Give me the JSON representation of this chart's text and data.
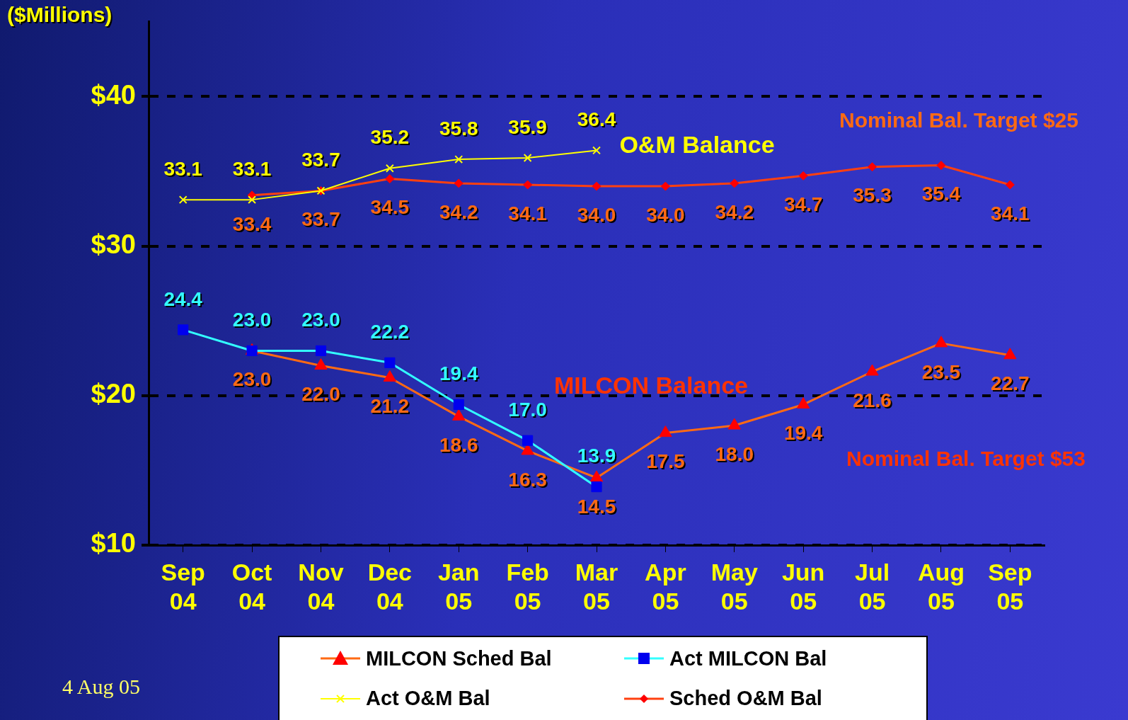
{
  "chart_data": {
    "type": "line",
    "ylabel": "($Millions)",
    "categories": [
      "Sep 04",
      "Oct 04",
      "Nov 04",
      "Dec 04",
      "Jan 05",
      "Feb 05",
      "Mar 05",
      "Apr 05",
      "May 05",
      "Jun 05",
      "Jul 05",
      "Aug 05",
      "Sep 05"
    ],
    "series": [
      {
        "name": "MILCON Sched Bal",
        "color": "#ff6a13",
        "marker": "triangle",
        "values": [
          null,
          23.0,
          22.0,
          21.2,
          18.6,
          16.3,
          14.5,
          17.5,
          18.0,
          19.4,
          21.6,
          23.5,
          22.7
        ],
        "value_labels": [
          null,
          "23.0",
          "22.0",
          "21.2",
          "18.6",
          "16.3",
          "14.5",
          "17.5",
          "18.0",
          "19.4",
          "21.6",
          "23.5",
          "22.7"
        ]
      },
      {
        "name": "Act MILCON Bal",
        "color": "#33ffff",
        "marker": "square",
        "values": [
          24.4,
          23.0,
          23.0,
          22.2,
          19.4,
          17.0,
          13.9,
          null,
          null,
          null,
          null,
          null,
          null
        ],
        "value_labels": [
          "24.4",
          "23.0",
          "23.0",
          "22.2",
          "19.4",
          "17.0",
          "13.9",
          null,
          null,
          null,
          null,
          null,
          null
        ]
      },
      {
        "name": "Act O&M Bal",
        "color": "#ffff00",
        "marker": "cross",
        "values": [
          33.1,
          33.1,
          33.7,
          35.2,
          35.8,
          35.9,
          36.4,
          null,
          null,
          null,
          null,
          null,
          null
        ],
        "value_labels": [
          "33.1",
          "33.1",
          "33.7",
          "35.2",
          "35.8",
          "35.9",
          "36.4",
          null,
          null,
          null,
          null,
          null,
          null
        ]
      },
      {
        "name": "Sched O&M Bal",
        "color": "#ff4010",
        "marker": "diamond",
        "values": [
          null,
          33.4,
          33.7,
          34.5,
          34.2,
          34.1,
          34.0,
          34.0,
          34.2,
          34.7,
          35.3,
          35.4,
          34.1
        ],
        "value_labels": [
          null,
          "33.4",
          "33.7",
          "34.5",
          "34.2",
          "34.1",
          "34.0",
          "34.0",
          "34.2",
          "34.7",
          "35.3",
          "35.4",
          "34.1"
        ]
      }
    ],
    "ylim": [
      10,
      45
    ],
    "yticks": [
      {
        "value": 10,
        "label": "$10"
      },
      {
        "value": 20,
        "label": "$20"
      },
      {
        "value": 30,
        "label": "$30"
      },
      {
        "value": 40,
        "label": "$40"
      }
    ],
    "grid": "y",
    "line_style": "solid",
    "legend": "bottom",
    "annotations": [
      "O&M Balance",
      "MILCON Balance",
      "Nominal Bal. Target $25",
      "Nominal Bal. Target $53",
      "4 Aug 05"
    ]
  }
}
